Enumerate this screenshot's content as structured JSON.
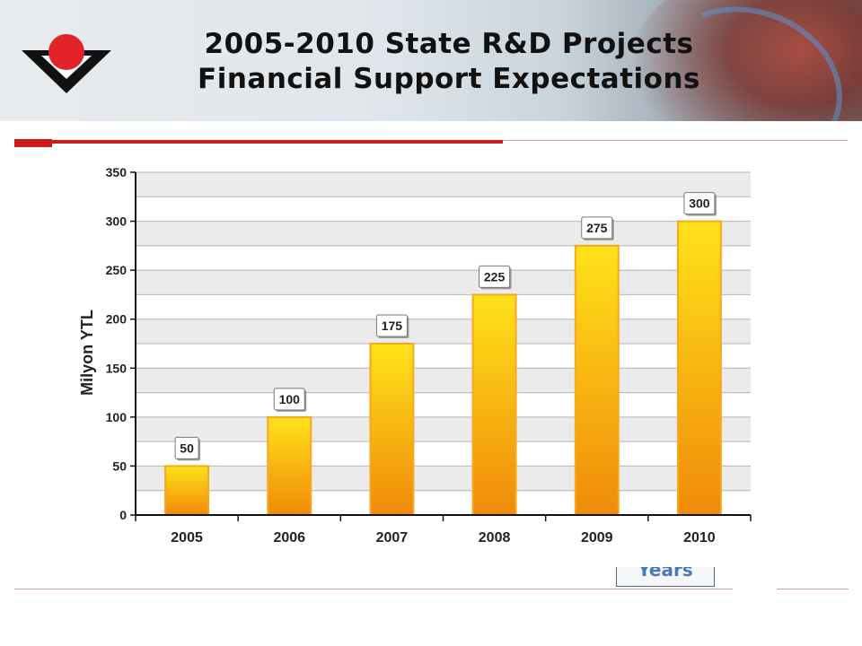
{
  "slide": {
    "title_line1": "2005-2010 State R&D Projects",
    "title_line2": "Financial Support Expectations",
    "years_label": "Years"
  },
  "colors": {
    "accent_red": "#cc1b1b",
    "bar_top": "#ffe21a",
    "bar_bottom": "#f08a0a",
    "bar_edge": "#f7a81c",
    "years_text": "#4a78b8"
  },
  "chart_data": {
    "type": "bar",
    "categories": [
      "2005",
      "2006",
      "2007",
      "2008",
      "2009",
      "2010"
    ],
    "values": [
      50,
      100,
      175,
      225,
      275,
      300
    ],
    "data_labels": [
      "50",
      "100",
      "175",
      "225",
      "275",
      "300"
    ],
    "ylabel": "Milyon YTL",
    "xlabel": "",
    "ylim": [
      0,
      350
    ],
    "yticks": [
      0,
      50,
      100,
      150,
      200,
      250,
      300,
      350
    ],
    "grid": true,
    "legend": "none"
  }
}
